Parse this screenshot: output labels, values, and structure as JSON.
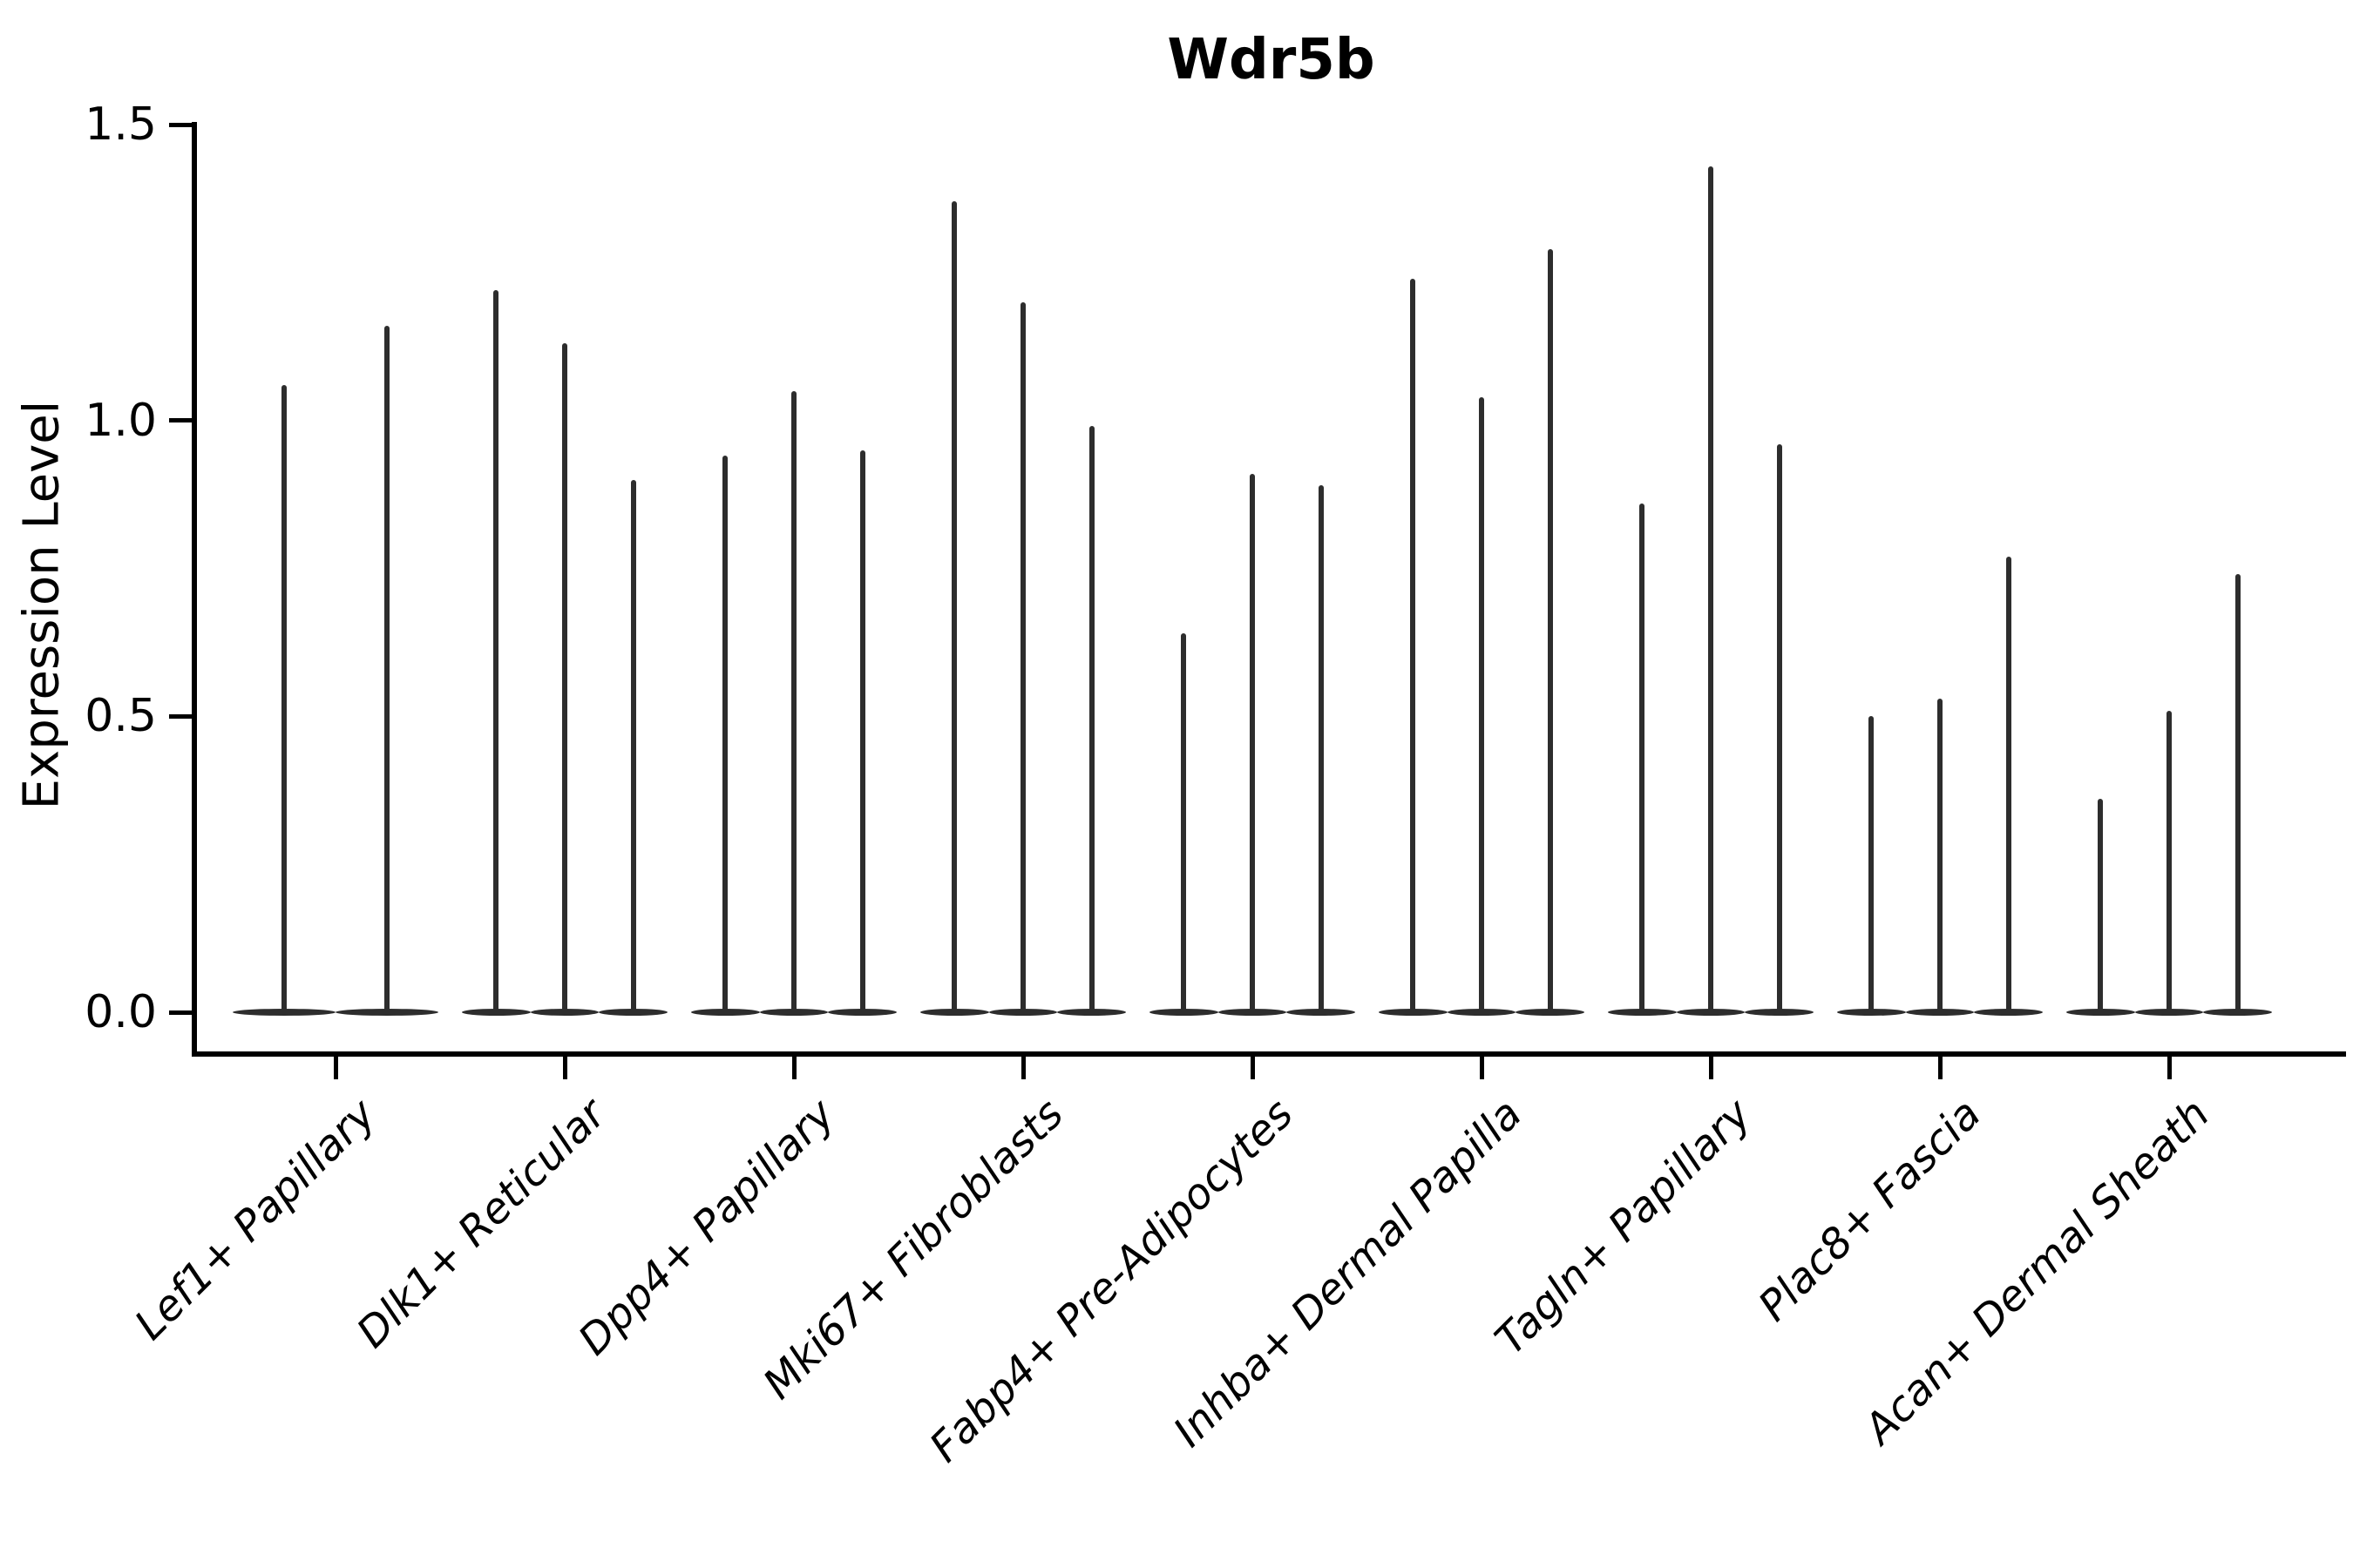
{
  "title": "Wdr5b",
  "ylabel": "Expression Level",
  "chart_data": {
    "type": "violin",
    "title": "Wdr5b",
    "xlabel": "",
    "ylabel": "Expression Level",
    "ylim": [
      0.0,
      1.5
    ],
    "yticks": [
      "0.0",
      "0.5",
      "1.0",
      "1.5"
    ],
    "ytick_values": [
      0.0,
      0.5,
      1.0,
      1.5
    ],
    "grid": false,
    "legend_position": "none",
    "violin_color": "#2d2d2d",
    "axis_color": "#000000",
    "categories": [
      "Lef1+ Papillary",
      "Dlk1+ Reticular",
      "Dpp4+ Papillary",
      "Mki67+ Fibroblasts",
      "Fabp4+ Pre-Adipocytes",
      "Inhba+ Dermal Papilla",
      "Tagln+ Papillary",
      "Plac8+ Fascia",
      "Acan+ Dermal Sheath"
    ],
    "series": [
      {
        "category": "Lef1+ Papillary",
        "violin_maxima": [
          1.06,
          1.16
        ]
      },
      {
        "category": "Dlk1+ Reticular",
        "violin_maxima": [
          1.22,
          1.13,
          0.9
        ]
      },
      {
        "category": "Dpp4+ Papillary",
        "violin_maxima": [
          0.94,
          1.05,
          0.95
        ]
      },
      {
        "category": "Mki67+ Fibroblasts",
        "violin_maxima": [
          1.37,
          1.2,
          0.99
        ]
      },
      {
        "category": "Fabp4+ Pre-Adipocytes",
        "violin_maxima": [
          0.64,
          0.91,
          0.89
        ]
      },
      {
        "category": "Inhba+ Dermal Papilla",
        "violin_maxima": [
          1.24,
          1.04,
          1.29
        ]
      },
      {
        "category": "Tagln+ Papillary",
        "violin_maxima": [
          0.86,
          1.43,
          0.96
        ]
      },
      {
        "category": "Plac8+ Fascia",
        "violin_maxima": [
          0.5,
          0.53,
          0.77
        ]
      },
      {
        "category": "Acan+ Dermal Sheath",
        "violin_maxima": [
          0.36,
          0.51,
          0.74
        ]
      }
    ],
    "violins_all_start_at": 0.0
  }
}
